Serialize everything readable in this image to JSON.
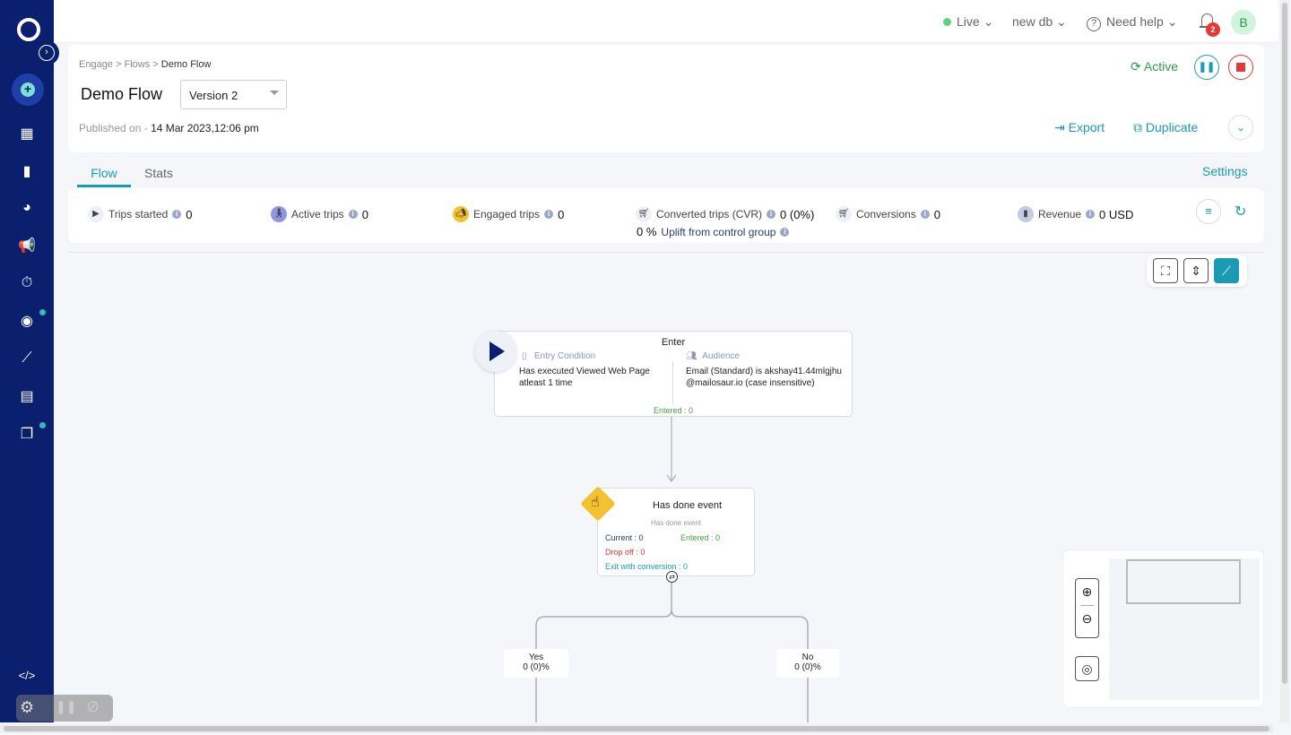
{
  "topbar": {
    "env": "Live",
    "db": "new db",
    "help": "Need help",
    "notif_count": "2",
    "avatar": "B"
  },
  "breadcrumb": {
    "items": [
      "Engage",
      "Flows"
    ],
    "current": "Demo Flow",
    "sep": ">"
  },
  "header": {
    "title": "Demo Flow",
    "version": "Version 2",
    "published_label": "Published on -",
    "published_date": "14 Mar 2023,12:06 pm",
    "status": "Active",
    "export": "Export",
    "duplicate": "Duplicate"
  },
  "tabs": [
    {
      "label": "Flow",
      "active": true
    },
    {
      "label": "Stats",
      "active": false
    }
  ],
  "settings": "Settings",
  "stats": {
    "trips_started": {
      "label": "Trips started",
      "value": "0"
    },
    "active_trips": {
      "label": "Active trips",
      "value": "0"
    },
    "engaged_trips": {
      "label": "Engaged trips",
      "value": "0"
    },
    "converted_trips": {
      "label": "Converted trips (CVR)",
      "value": "0 (0%)"
    },
    "conversions": {
      "label": "Conversions",
      "value": "0"
    },
    "revenue": {
      "label": "Revenue",
      "value": "0 USD"
    },
    "uplift": {
      "value": "0 %",
      "label": "Uplift from control group"
    }
  },
  "enter_node": {
    "title": "Enter",
    "entry_label": "Entry Condition",
    "entry_text": "Has executed Viewed Web Page atleast 1 time",
    "audience_label": "Audience",
    "audience_text": "Email (Standard)  is akshay41.44mlgjhu@mailosaur.io (case insensitive)",
    "entered": "Entered : 0"
  },
  "event_node": {
    "title": "Has done event",
    "subtitle": "Has done event",
    "current": "Current : 0",
    "entered": "Entered : 0",
    "dropoff": "Drop off : 0",
    "exit": "Exit with conversion : 0"
  },
  "branches": [
    {
      "label": "Yes",
      "value": "0 (0)%"
    },
    {
      "label": "No",
      "value": "0 (0)%"
    }
  ],
  "colors": {
    "sidebar": "#0a1f6e",
    "accent": "#1a9bb3",
    "active_green": "#2a9d4a",
    "stop_red": "#e53935",
    "event_yellow": "#f2c230"
  }
}
